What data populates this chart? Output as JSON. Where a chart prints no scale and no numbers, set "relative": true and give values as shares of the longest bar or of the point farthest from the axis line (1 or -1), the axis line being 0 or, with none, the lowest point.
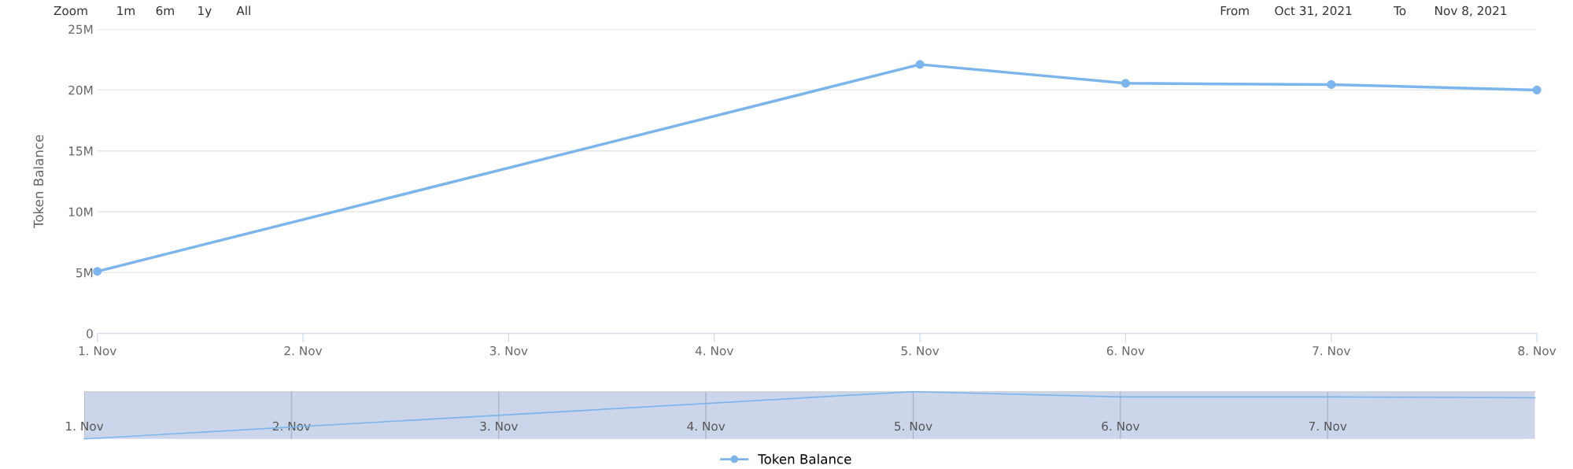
{
  "chart_data": [
    {
      "type": "line",
      "ylabel": "Token Balance",
      "x": [
        "2021-11-01",
        "2021-11-05",
        "2021-11-06",
        "2021-11-07",
        "2021-11-08"
      ],
      "series": [
        {
          "name": "Token Balance",
          "color": "#7cb5ec",
          "values": [
            5100000,
            22100000,
            20550000,
            20450000,
            20000000
          ]
        }
      ],
      "xlim": [
        "2021-11-01",
        "2021-11-08"
      ],
      "xticks": [
        {
          "value": "2021-11-01",
          "label": "1. Nov"
        },
        {
          "value": "2021-11-02",
          "label": "2. Nov"
        },
        {
          "value": "2021-11-03",
          "label": "3. Nov"
        },
        {
          "value": "2021-11-04",
          "label": "4. Nov"
        },
        {
          "value": "2021-11-05",
          "label": "5. Nov"
        },
        {
          "value": "2021-11-06",
          "label": "6. Nov"
        },
        {
          "value": "2021-11-07",
          "label": "7. Nov"
        },
        {
          "value": "2021-11-08",
          "label": "8. Nov"
        }
      ],
      "ylim": [
        0,
        25000000
      ],
      "yticks": [
        {
          "value": 0,
          "label": "0"
        },
        {
          "value": 5000000,
          "label": "5M"
        },
        {
          "value": 10000000,
          "label": "10M"
        },
        {
          "value": 15000000,
          "label": "15M"
        },
        {
          "value": 20000000,
          "label": "20M"
        },
        {
          "value": 25000000,
          "label": "25M"
        }
      ],
      "grid": "y",
      "marker": "circle",
      "legend": "bottom",
      "annotations": [
        "Zoom",
        "1m",
        "6m",
        "1y",
        "All",
        "From",
        "Oct 31, 2021",
        "To",
        "Nov 8, 2021"
      ]
    },
    {
      "type": "line",
      "relative": true,
      "x": [
        "2021-11-01",
        "2021-11-05",
        "2021-11-06",
        "2021-11-07",
        "2021-11-08"
      ],
      "series": [
        {
          "color": "#7cb5ec",
          "values": [
            0,
            1,
            0.89,
            0.89,
            0.87
          ]
        }
      ],
      "xlim": [
        "2021-11-01",
        "2021-11-08"
      ],
      "xticks": [
        {
          "value": "2021-11-01",
          "label": "1. Nov"
        },
        {
          "value": "2021-11-02",
          "label": "2. Nov"
        },
        {
          "value": "2021-11-03",
          "label": "3. Nov"
        },
        {
          "value": "2021-11-04",
          "label": "4. Nov"
        },
        {
          "value": "2021-11-05",
          "label": "5. Nov"
        },
        {
          "value": "2021-11-06",
          "label": "6. Nov"
        },
        {
          "value": "2021-11-07",
          "label": "7. Nov"
        }
      ],
      "grid": "x",
      "marker": "none",
      "tick_labels": "x"
    }
  ]
}
